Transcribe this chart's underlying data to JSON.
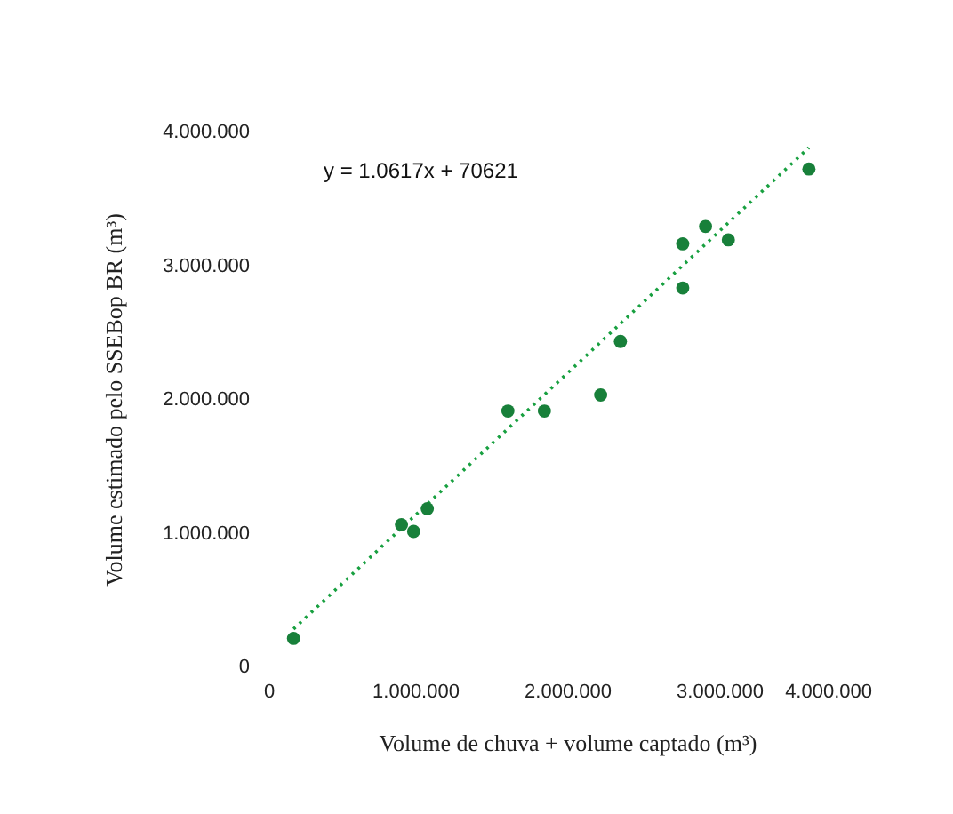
{
  "chart_data": {
    "type": "scatter",
    "xlabel": "Volume de chuva + volume captado (m³)",
    "ylabel": "Volume estimado pelo SSEBop BR  (m³)",
    "series": [
      {
        "color": "#18803a",
        "x": [
          200000,
          910000,
          990000,
          1080000,
          1610000,
          1850000,
          2220000,
          2350000,
          2760000,
          2760000,
          2910000,
          3060000,
          3590000
        ],
        "values": [
          210000,
          1060000,
          1010000,
          1180000,
          1910000,
          1910000,
          2030000,
          2430000,
          3160000,
          2830000,
          3290000,
          3190000,
          3720000
        ]
      },
      {
        "type": "line",
        "color": "#18a040",
        "line_style": "dotted",
        "marker": "none",
        "x": [
          200000,
          3590000
        ],
        "values": [
          280000,
          3880000
        ]
      }
    ],
    "annotations": [
      "y = 1.0617x + 70621"
    ],
    "marker": "circle",
    "grid": false,
    "xlim": [
      0,
      4000000
    ],
    "xticks": [
      {
        "value": 0,
        "label": "0"
      },
      {
        "value": 1000000,
        "label": "1.000.000"
      },
      {
        "value": 2000000,
        "label": "2.000.000"
      },
      {
        "value": 3000000,
        "label": "3.000.000"
      },
      {
        "value": 4000000,
        "label": "4.000.000"
      }
    ],
    "ylim": [
      0,
      4000000
    ],
    "yticks": [
      {
        "value": 0,
        "label": "0"
      },
      {
        "value": 1000000,
        "label": "1.000.000"
      },
      {
        "value": 2000000,
        "label": "2.000.000"
      },
      {
        "value": 3000000,
        "label": "3.000.000"
      },
      {
        "value": 4000000,
        "label": "4.000.000"
      }
    ]
  }
}
